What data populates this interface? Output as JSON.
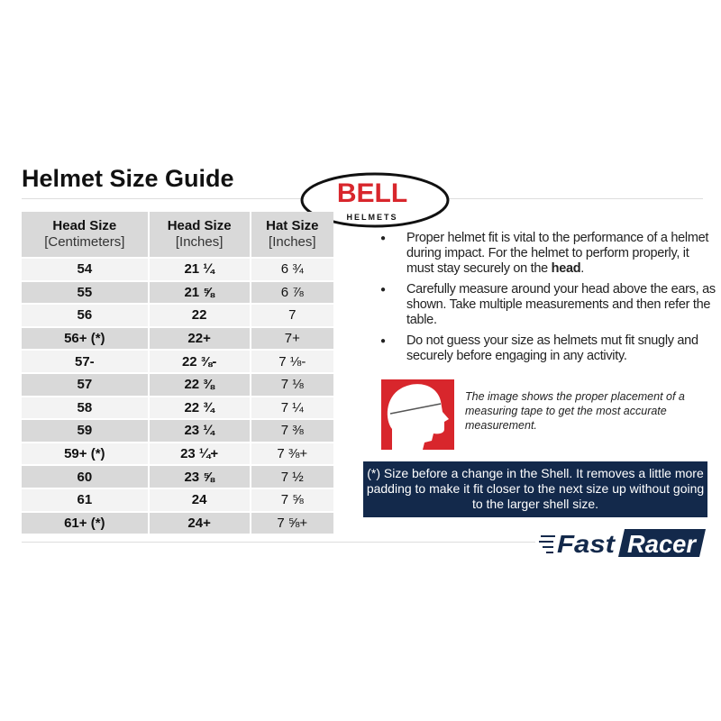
{
  "title": "Helmet Size Guide",
  "logo": {
    "brand": "BELL",
    "sub": "HELMETS",
    "color": "#d8262c"
  },
  "table": {
    "headers": [
      {
        "main": "Head Size",
        "unit": "[Centimeters]"
      },
      {
        "main": "Head Size",
        "unit": "[Inches]"
      },
      {
        "main": "Hat Size",
        "unit": "[Inches]"
      }
    ],
    "rows": [
      [
        "54",
        "21 ¼",
        "6 ¾"
      ],
      [
        "55",
        "21 ⅝",
        "6 ⅞"
      ],
      [
        "56",
        "22",
        "7"
      ],
      [
        "56+ (*)",
        "22+",
        "7+"
      ],
      [
        "57-",
        "22 ⅜-",
        "7 ⅛-"
      ],
      [
        "57",
        "22 ⅜",
        "7 ⅛"
      ],
      [
        "58",
        "22 ¾",
        "7 ¼"
      ],
      [
        "59",
        "23 ¼",
        "7 ⅜"
      ],
      [
        "59+ (*)",
        "23 ¼+",
        "7 ⅜+"
      ],
      [
        "60",
        "23 ⅝",
        "7 ½"
      ],
      [
        "61",
        "24",
        "7 ⅝"
      ],
      [
        "61+ (*)",
        "24+",
        "7 ⅝+"
      ]
    ]
  },
  "bullets": {
    "b1_pre": "Proper helmet fit is vital to the performance of a helmet during impact. For the helmet to perform properly, it must stay securely on the ",
    "b1_bold": "head",
    "b1_post": ".",
    "b2": "Carefully measure around your head above the ears, as shown. Take multiple measurements and then refer the table.",
    "b3": "Do not guess your size as helmets mut fit snugly and securely before engaging in any activity."
  },
  "caption": "The image shows the proper placement of a measuring tape to get the most accurate measurement.",
  "note": "(*) Size before a change in the Shell. It removes a little more padding to make it fit closer to the next size up without going to the larger shell size.",
  "footer_logo": {
    "text": "FastRacer",
    "color": "#13294b"
  }
}
